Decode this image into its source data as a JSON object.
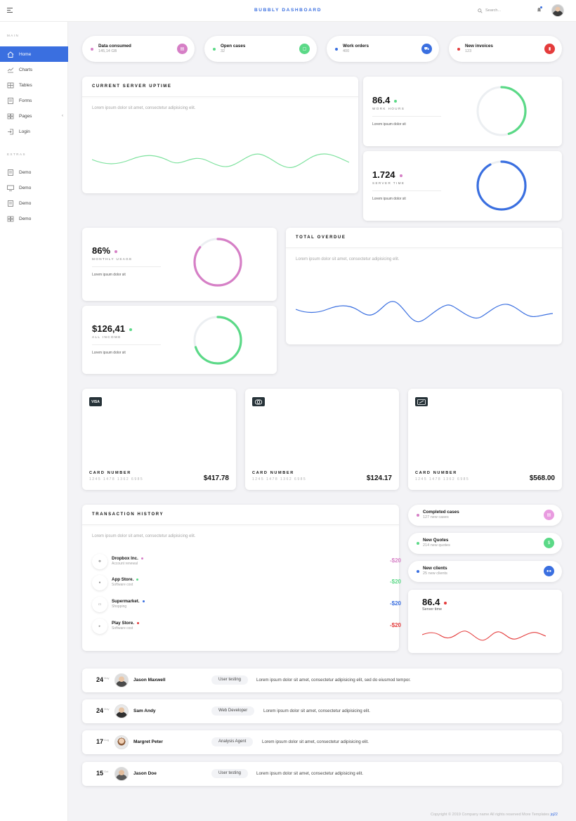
{
  "header": {
    "title": "BUBBLY DASHBOARD",
    "search_placeholder": "Search..."
  },
  "sidebar": {
    "sections": [
      {
        "label": "MAIN"
      },
      {
        "label": "EXTRAS"
      }
    ],
    "items": [
      {
        "label": "Home",
        "icon": "home-icon"
      },
      {
        "label": "Charts",
        "icon": "chart-icon"
      },
      {
        "label": "Tables",
        "icon": "grid-icon"
      },
      {
        "label": "Forms",
        "icon": "form-icon"
      },
      {
        "label": "Pages",
        "icon": "pages-icon"
      },
      {
        "label": "Login",
        "icon": "login-icon"
      },
      {
        "label": "Demo",
        "icon": "doc-icon"
      },
      {
        "label": "Demo",
        "icon": "monitor-icon"
      },
      {
        "label": "Demo",
        "icon": "doc-icon"
      },
      {
        "label": "Demo",
        "icon": "grid-icon"
      }
    ]
  },
  "stats": [
    {
      "title": "Data consumed",
      "value": "145,14 GB",
      "color": "#d67fc6"
    },
    {
      "title": "Open cases",
      "value": "32",
      "color": "#5bd987"
    },
    {
      "title": "Work orders",
      "value": "400",
      "color": "#3a6fe0"
    },
    {
      "title": "New invoices",
      "value": "123",
      "color": "#e43c3c"
    }
  ],
  "uptime": {
    "title": "CURRENT SERVER UPTIME",
    "text": "Lorem ipsum dolor sit amet, consectetur adipisicing elit."
  },
  "kpis": [
    {
      "value": "86.4",
      "label": "WORK HOURS",
      "text": "Lorem ipsum dolor sit",
      "color": "#5bd987",
      "progress": 0.45
    },
    {
      "value": "1.724",
      "label": "SERVER TIME",
      "text": "Lorem ipsum dolor sit",
      "color": "#3a6fe0",
      "progress": 0.92
    },
    {
      "value": "86%",
      "label": "MONTHLY USAGE",
      "text": "Lorem ipsum dolor sit",
      "color": "#d67fc6",
      "progress": 0.86
    },
    {
      "value": "$126,41",
      "label": "ALL INCOME",
      "text": "Lorem ipsum dolor sit",
      "color": "#5bd987",
      "progress": 0.7
    }
  ],
  "overdue": {
    "title": "TOTAL OVERDUE",
    "text": "Lorem ipsum dolor sit amet, consectetur adipisicing elit."
  },
  "cards": [
    {
      "brand": "VISA",
      "label": "CARD NUMBER",
      "number": "1245 1478 1362 6985",
      "amount": "$417.78"
    },
    {
      "brand": "mastercard-icon",
      "label": "CARD NUMBER",
      "number": "1245 1478 1362 6985",
      "amount": "$124.17"
    },
    {
      "brand": "card-icon",
      "label": "CARD NUMBER",
      "number": "1245 1478 1362 6985",
      "amount": "$568.00"
    }
  ],
  "transactions": {
    "title": "TRANSACTION HISTORY",
    "text": "Lorem ipsum dolor sit amet, consectetur adipisicing elit.",
    "items": [
      {
        "name": "Dropbox Inc.",
        "sub": "Account renewal",
        "amount": "-$20",
        "color": "#d67fc6"
      },
      {
        "name": "App Store.",
        "sub": "Software cost",
        "amount": "-$20",
        "color": "#5bd987"
      },
      {
        "name": "Supermarket.",
        "sub": "Shopping",
        "amount": "-$20",
        "color": "#3a6fe0"
      },
      {
        "name": "Play Store.",
        "sub": "Software cost",
        "amount": "-$20",
        "color": "#e43c3c"
      }
    ]
  },
  "side_stats": [
    {
      "title": "Completed cases",
      "value": "127 new cases",
      "color": "#d67fc6"
    },
    {
      "title": "New Quotes",
      "value": "214 new quotes",
      "color": "#5bd987"
    },
    {
      "title": "New clients",
      "value": "25 new clients",
      "color": "#3a6fe0"
    }
  ],
  "server": {
    "value": "86.4",
    "label": "Server time",
    "color": "#e43c3c"
  },
  "activity": [
    {
      "day": "24",
      "month": "May",
      "name": "Jason Maxwell",
      "role": "User testing",
      "text": "Lorem ipsum dolor sit amet, consectetur adipisicing elit, sed do eiusmod tempor."
    },
    {
      "day": "24",
      "month": "May",
      "name": "Sam Andy",
      "role": "Web Developer",
      "text": "Lorem ipsum dolor sit amet, consectetur adipisicing elit."
    },
    {
      "day": "17",
      "month": "Aug",
      "name": "Margret Peter",
      "role": "Analysis Agent",
      "text": "Lorem ipsum dolor sit amet, consectetur adipisicing elit."
    },
    {
      "day": "15",
      "month": "Oct",
      "name": "Jason Doe",
      "role": "User testing",
      "text": "Lorem ipsum dolor sit amet, consectetur adipisicing elit."
    }
  ],
  "footer": {
    "text": "Copyright © 2019 Company name All rights reserved More Templates",
    "link": "jq22"
  }
}
